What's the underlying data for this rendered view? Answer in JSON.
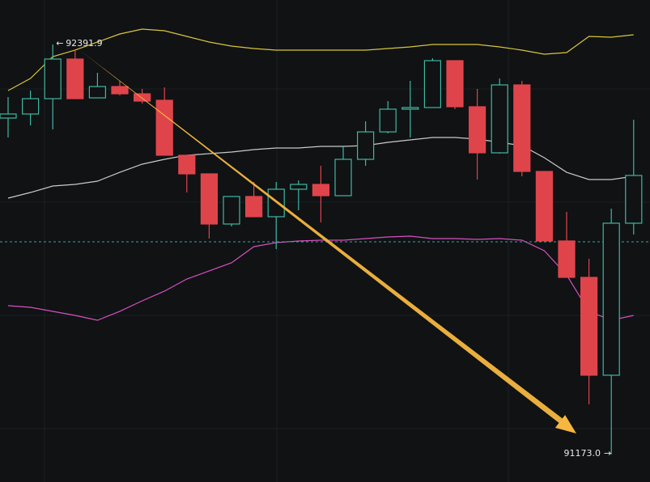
{
  "chart_data": {
    "type": "candlestick",
    "ylim": [
      91091.3,
      92524.1
    ],
    "up_color": "#3fb8a2",
    "down_color": "#e0444b",
    "open": [
      92173.1,
      92185.2,
      92230.8,
      92348.6,
      92233.2,
      92266.9,
      92245.3,
      92226.0,
      92062.6,
      92007.3,
      91858.2,
      91940.0,
      91879.9,
      91961.6,
      91976.0,
      91942.4,
      92050.5,
      92132.1,
      92199.6,
      92204.4,
      92343.8,
      92206.8,
      92069.8,
      92271.7,
      92014.5,
      91807.8,
      91699.6,
      91408.7,
      91860.6
    ],
    "high": [
      92235.6,
      92254.9,
      92391.9,
      92375.1,
      92307.8,
      92283.7,
      92259.7,
      92264.5,
      92062.6,
      92007.3,
      91940.0,
      91983.2,
      91983.2,
      91988.0,
      92031.3,
      92091.4,
      92163.5,
      92223.6,
      92283.7,
      92351.0,
      92343.8,
      92259.7,
      92290.9,
      92283.7,
      92014.5,
      91894.3,
      91754.8,
      91903.9,
      92168.3
    ],
    "low": [
      92115.4,
      92151.5,
      92139.5,
      92230.8,
      92233.2,
      92240.5,
      92216.4,
      92062.6,
      91952.0,
      91815.0,
      91851.0,
      91879.9,
      91783.7,
      91899.1,
      91863.1,
      91942.4,
      92031.3,
      92127.5,
      92115.4,
      92204.4,
      92199.6,
      91990.4,
      92067.4,
      92000.0,
      91807.8,
      91699.6,
      91322.1,
      91173.0,
      91827.0
    ],
    "close": [
      92185.2,
      92230.8,
      92348.6,
      92230.8,
      92266.9,
      92245.3,
      92223.6,
      92062.6,
      92007.3,
      91858.2,
      91940.0,
      91879.9,
      91961.6,
      91976.0,
      91942.4,
      92050.5,
      92132.1,
      92199.6,
      92204.4,
      92343.8,
      92206.8,
      92069.8,
      92271.7,
      92014.5,
      91807.8,
      91699.6,
      91408.7,
      91860.6,
      92002.5
    ],
    "bands": [
      {
        "color": "#d8c53a",
        "values": [
          92254.9,
          92290.9,
          92355.8,
          92375.1,
          92399.1,
          92423.1,
          92437.6,
          92432.7,
          92415.9,
          92399.1,
          92387.1,
          92379.9,
          92375.1,
          92375.1,
          92375.1,
          92375.1,
          92375.1,
          92379.9,
          92384.7,
          92391.9,
          92391.9,
          92391.9,
          92384.7,
          92375.1,
          92363.0,
          92367.8,
          92415.9,
          92413.5,
          92420.7
        ]
      },
      {
        "color": "#c9c9c9",
        "values": [
          91935.1,
          91951.9,
          91971.2,
          91976.0,
          91985.6,
          92012.0,
          92036.1,
          92050.5,
          92062.6,
          92067.3,
          92072.1,
          92079.4,
          92084.2,
          92084.2,
          92089.0,
          92089.0,
          92091.4,
          92101.0,
          92108.2,
          92115.4,
          92115.4,
          92110.6,
          92101.0,
          92091.4,
          92055.3,
          92012.0,
          91990.4,
          91990.4,
          92000.0
        ]
      },
      {
        "color": "#d84fc0",
        "values": [
          91615.4,
          91610.6,
          91598.6,
          91586.5,
          91572.1,
          91598.6,
          91629.8,
          91658.7,
          91694.7,
          91718.8,
          91742.8,
          91790.9,
          91802.9,
          91807.7,
          91810.1,
          91810.1,
          91814.9,
          91819.7,
          91822.1,
          91814.9,
          91814.9,
          91812.5,
          91814.9,
          91810.1,
          91778.9,
          91706.7,
          91598.6,
          91572.1,
          91586.5
        ]
      }
    ],
    "reference_line": 91805.4,
    "reference_color": "#3aa89a",
    "high_marker": 92391.9,
    "low_marker": {
      "value": 91173.0,
      "label": "91173.0"
    }
  }
}
